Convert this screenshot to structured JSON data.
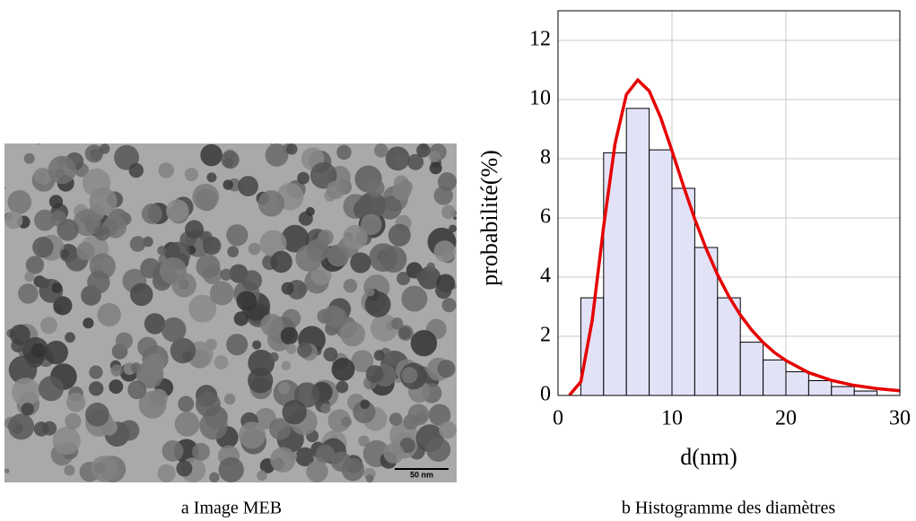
{
  "image_panel": {
    "scale_bar": "50 nm",
    "caption": "a Image MEB"
  },
  "chart_data": {
    "type": "histogram",
    "caption": "b Histogramme des diamètres",
    "x_label": "d(nm)",
    "y_label": "probabilité(%)",
    "bins": [
      2,
      4,
      6,
      8,
      10,
      12,
      14,
      16,
      18,
      20,
      22,
      24,
      26,
      28
    ],
    "values": [
      3.3,
      8.2,
      9.7,
      8.3,
      7.0,
      5.0,
      3.3,
      1.8,
      1.2,
      0.8,
      0.5,
      0.3,
      0.15
    ],
    "color": "#e2e2f7",
    "edge_color": "#000000",
    "curve": {
      "type": "line",
      "color": "#e60000",
      "x": [
        1,
        2,
        3,
        4,
        5,
        6,
        7,
        8,
        9,
        10,
        11,
        12,
        13,
        14,
        15,
        16,
        17,
        18,
        19,
        20,
        22,
        24,
        26,
        28,
        30
      ],
      "values": [
        0.01,
        0.46,
        2.54,
        5.7,
        8.5,
        10.17,
        10.66,
        10.29,
        9.4,
        8.27,
        7.09,
        5.96,
        4.96,
        4.08,
        3.34,
        2.72,
        2.21,
        1.79,
        1.45,
        1.18,
        0.77,
        0.51,
        0.34,
        0.23,
        0.16
      ]
    },
    "xlim": [
      0,
      30
    ],
    "ylim": [
      0,
      13
    ],
    "xticks": [
      0,
      10,
      20,
      30
    ],
    "yticks": [
      0,
      2,
      4,
      6,
      8,
      10,
      12
    ],
    "grid": true
  }
}
